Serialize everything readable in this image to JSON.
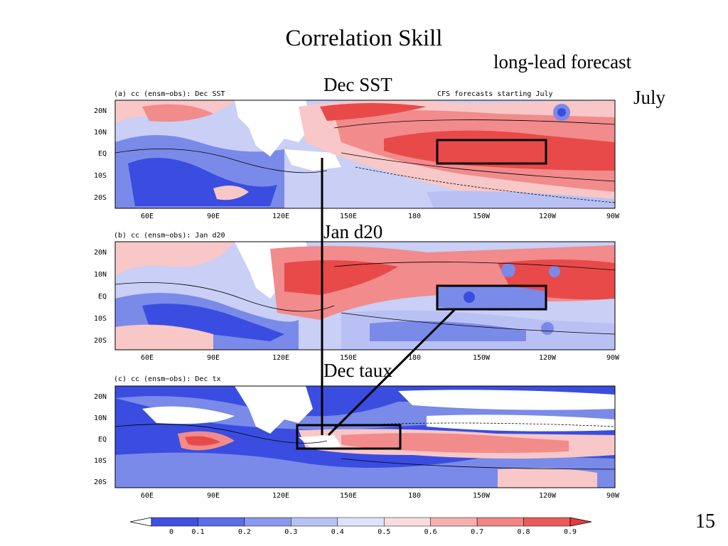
{
  "slide": {
    "title": "Correlation Skill",
    "subtitle": "long-lead forecast",
    "month": "July",
    "slide_number": "15"
  },
  "panels": [
    {
      "id": "a",
      "header": "(a) cc (ensm−obs): Dec SST",
      "header_right": "CFS forecasts starting July",
      "callout": "Dec SST"
    },
    {
      "id": "b",
      "header": "(b) cc (ensm−obs): Jan d20",
      "header_right": "",
      "callout": "Jan d20"
    },
    {
      "id": "c",
      "header": "(c) cc (ensm−obs): Dec tx",
      "header_right": "",
      "callout": "Dec taux"
    }
  ],
  "axes": {
    "lat_ticks": [
      "20N",
      "10N",
      "EQ",
      "10S",
      "20S"
    ],
    "lon_ticks": [
      "60E",
      "90E",
      "120E",
      "150E",
      "180",
      "150W",
      "120W",
      "90W"
    ]
  },
  "colorbar": {
    "ticks": [
      "0",
      "0.1",
      "0.2",
      "0.3",
      "0.4",
      "0.5",
      "0.6",
      "0.7",
      "0.8",
      "0.9"
    ],
    "colors": [
      "#ffffff",
      "#3f4fe0",
      "#5a6ee8",
      "#8a98ee",
      "#b9c1f4",
      "#dfe3fa",
      "#f9dcdc",
      "#f4b0b0",
      "#ef8585",
      "#ea5a5a",
      "#e63c3c"
    ]
  },
  "colors": {
    "box": "#000000",
    "strong_red": "#e84a4a",
    "mid_red": "#f28b8b",
    "light_red": "#f8c7c7",
    "strong_blue": "#3a4de0",
    "mid_blue": "#7a8ae8",
    "light_blue": "#c5ccf5"
  }
}
